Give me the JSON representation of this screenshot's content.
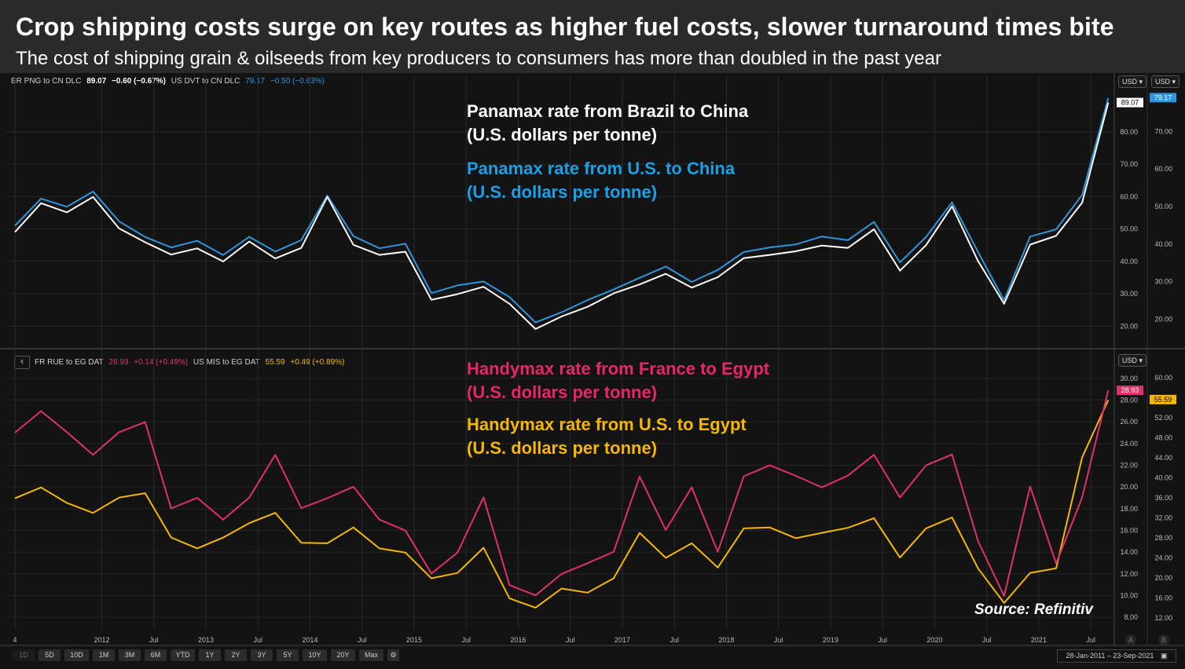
{
  "header": {
    "title": "Crop shipping costs surge on key routes as higher fuel costs, slower turnaround times bite",
    "subtitle": "The cost of shipping grain & oilseeds from key producers to consumers has more than doubled in the past year"
  },
  "top_panel": {
    "legend": {
      "s1_name": "BR PNG to CN DLC",
      "s1_value": "89.07",
      "s1_change": "−0.60 (−0.67%)",
      "s2_name": "US DVT to CN DLC",
      "s2_value": "79.17",
      "s2_change": "−0.50 (−0.63%)"
    },
    "annotation_1_line1": "Panamax rate from Brazil to China",
    "annotation_1_line2": "(U.S. dollars per tonne)",
    "annotation_2_line1": "Panamax rate from U.S. to China",
    "annotation_2_line2": "(U.S. dollars per tonne)",
    "currency_a": "USD",
    "currency_b": "USD"
  },
  "bottom_panel": {
    "back_icon": "‹",
    "legend": {
      "s1_name": "FR RUE to EG DAT",
      "s1_value": "28.93",
      "s1_change": "+0.14 (+0.49%)",
      "s2_name": "US MIS to EG DAT",
      "s2_value": "55.59",
      "s2_change": "+0.49 (+0.89%)"
    },
    "annotation_1_line1": "Handymax rate from France to Egypt",
    "annotation_1_line2": "(U.S. dollars per tonne)",
    "annotation_2_line1": "Handymax rate from U.S. to Egypt",
    "annotation_2_line2": "(U.S. dollars per tonne)",
    "currency": "USD",
    "source": "Source: Refinitiv"
  },
  "toolbar": {
    "periods": [
      "1D",
      "5D",
      "10D",
      "1M",
      "3M",
      "6M",
      "YTD",
      "1Y",
      "2Y",
      "3Y",
      "5Y",
      "10Y",
      "20Y",
      "Max"
    ],
    "date_range": "28-Jan-2011  –  23-Sep-2021",
    "scale_a": "A",
    "scale_b": "B"
  },
  "colors": {
    "brazil_china": "#ffffff",
    "us_china": "#2f95dc",
    "france_egypt": "#e0316a",
    "us_egypt": "#f5b800",
    "background": "#131313"
  },
  "chart_data": [
    {
      "type": "line",
      "x_ticks": [
        "4",
        "2012",
        "Jul",
        "2013",
        "Jul",
        "2014",
        "Jul",
        "2015",
        "Jul",
        "2016",
        "Jul",
        "2017",
        "Jul",
        "2018",
        "Jul",
        "2019",
        "Jul",
        "2020",
        "Jul",
        "2021",
        "Jul"
      ],
      "x": [
        "2011-03",
        "2011-06",
        "2011-09",
        "2011-12",
        "2012-03",
        "2012-06",
        "2012-09",
        "2012-12",
        "2013-03",
        "2013-06",
        "2013-09",
        "2013-12",
        "2014-03",
        "2014-06",
        "2014-09",
        "2014-12",
        "2015-03",
        "2015-06",
        "2015-09",
        "2015-12",
        "2016-03",
        "2016-06",
        "2016-09",
        "2016-12",
        "2017-03",
        "2017-06",
        "2017-09",
        "2017-12",
        "2018-03",
        "2018-06",
        "2018-09",
        "2018-12",
        "2019-03",
        "2019-06",
        "2019-09",
        "2019-12",
        "2020-03",
        "2020-06",
        "2020-09",
        "2020-12",
        "2021-03",
        "2021-06",
        "2021-09"
      ],
      "y_left_ticks": [
        "20.00",
        "30.00",
        "40.00",
        "50.00",
        "60.00",
        "70.00",
        "80.00"
      ],
      "y_right_ticks": [
        "20.00",
        "30.00",
        "40.00",
        "50.00",
        "60.00",
        "70.00"
      ],
      "ylim_left": [
        14,
        94
      ],
      "ylim_right": [
        13,
        82
      ],
      "series": [
        {
          "name": "BR PNG to CN DLC",
          "axis": "left",
          "last": "89.07",
          "values": [
            49,
            58,
            55,
            60,
            50,
            46,
            42,
            44,
            40,
            46,
            41,
            44,
            60,
            45,
            42,
            43,
            28,
            30,
            32,
            27,
            19,
            23,
            26,
            30,
            33,
            36,
            32,
            35,
            41,
            42,
            43,
            45,
            44,
            50,
            37,
            45,
            57,
            40,
            27,
            45,
            48,
            58,
            89
          ]
        },
        {
          "name": "US DVT to CN DLC",
          "axis": "right",
          "last": "79.17",
          "values": [
            45,
            52,
            50,
            54,
            46,
            42,
            39,
            41,
            37,
            42,
            38,
            41,
            53,
            42,
            39,
            40,
            27,
            29,
            30,
            26,
            19,
            22,
            25,
            28,
            31,
            34,
            30,
            33,
            38,
            39,
            40,
            42,
            41,
            46,
            35,
            42,
            51,
            38,
            25,
            42,
            44,
            53,
            79
          ]
        }
      ]
    },
    {
      "type": "line",
      "x_ticks": [
        "4",
        "2012",
        "Jul",
        "2013",
        "Jul",
        "2014",
        "Jul",
        "2015",
        "Jul",
        "2016",
        "Jul",
        "2017",
        "Jul",
        "2018",
        "Jul",
        "2019",
        "Jul",
        "2020",
        "Jul",
        "2021",
        "Jul"
      ],
      "x": [
        "2011-03",
        "2011-06",
        "2011-09",
        "2011-12",
        "2012-03",
        "2012-06",
        "2012-09",
        "2012-12",
        "2013-03",
        "2013-06",
        "2013-09",
        "2013-12",
        "2014-03",
        "2014-06",
        "2014-09",
        "2014-12",
        "2015-03",
        "2015-06",
        "2015-09",
        "2015-12",
        "2016-03",
        "2016-06",
        "2016-09",
        "2016-12",
        "2017-03",
        "2017-06",
        "2017-09",
        "2017-12",
        "2018-03",
        "2018-06",
        "2018-09",
        "2018-12",
        "2019-03",
        "2019-06",
        "2019-09",
        "2019-12",
        "2020-03",
        "2020-06",
        "2020-09",
        "2020-12",
        "2021-03",
        "2021-06",
        "2021-09"
      ],
      "y_left_ticks": [
        "8.00",
        "10.00",
        "12.00",
        "14.00",
        "16.00",
        "18.00",
        "20.00",
        "22.00",
        "24.00",
        "26.00",
        "28.00",
        "30.00"
      ],
      "y_right_ticks": [
        "12.00",
        "16.00",
        "20.00",
        "24.00",
        "28.00",
        "32.00",
        "36.00",
        "40.00",
        "44.00",
        "48.00",
        "52.00",
        "56.00",
        "60.00"
      ],
      "ylim_left": [
        7,
        31
      ],
      "ylim_right": [
        10,
        62
      ],
      "series": [
        {
          "name": "FR RUE to EG DAT",
          "axis": "left",
          "last": "28.93",
          "values": [
            25,
            27,
            25,
            23,
            25,
            26,
            18,
            19,
            17,
            19,
            23,
            18,
            19,
            20,
            17,
            16,
            12,
            14,
            19,
            11,
            10,
            12,
            13,
            14,
            21,
            16,
            20,
            14,
            21,
            22,
            21,
            20,
            21,
            23,
            19,
            22,
            23,
            15,
            10,
            20,
            13,
            19,
            28.9
          ]
        },
        {
          "name": "US MIS to EG DAT",
          "axis": "right",
          "last": "55.59",
          "values": [
            36,
            38,
            35,
            33,
            36,
            37,
            28,
            26,
            28,
            31,
            33,
            27,
            27,
            30,
            26,
            25,
            20,
            21,
            26,
            16,
            14,
            18,
            17,
            20,
            29,
            24,
            27,
            22,
            30,
            30,
            28,
            29,
            30,
            32,
            24,
            30,
            32,
            22,
            15,
            21,
            22,
            44,
            55.6
          ]
        }
      ]
    }
  ]
}
